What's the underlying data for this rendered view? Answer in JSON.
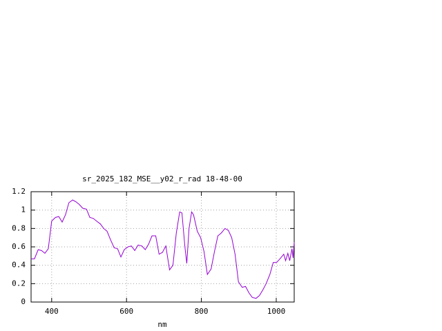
{
  "chart_data": {
    "type": "line",
    "title": "sr_2025_182_MSE__y02_r_rad 18-48-00",
    "x_label": "nm",
    "x": [
      345,
      354,
      364,
      373,
      382,
      391,
      400,
      410,
      419,
      428,
      437,
      446,
      456,
      465,
      474,
      483,
      493,
      502,
      511,
      520,
      530,
      539,
      548,
      557,
      567,
      576,
      585,
      594,
      604,
      613,
      622,
      631,
      641,
      650,
      659,
      668,
      678,
      687,
      696,
      705,
      715,
      724,
      733,
      742,
      748,
      756,
      761,
      767,
      774,
      779,
      789,
      798,
      807,
      816,
      826,
      835,
      844,
      853,
      863,
      872,
      881,
      890,
      899,
      909,
      918,
      927,
      936,
      946,
      955,
      964,
      973,
      983,
      992,
      1001,
      1010,
      1020,
      1025,
      1031,
      1036,
      1042,
      1045,
      1048
    ],
    "series": [
      {
        "name": null,
        "color": "#9400d3",
        "values": [
          0.47,
          0.47,
          0.57,
          0.56,
          0.53,
          0.58,
          0.88,
          0.92,
          0.93,
          0.87,
          0.95,
          1.08,
          1.11,
          1.09,
          1.06,
          1.02,
          1.01,
          0.92,
          0.91,
          0.88,
          0.85,
          0.8,
          0.77,
          0.68,
          0.59,
          0.58,
          0.49,
          0.57,
          0.6,
          0.61,
          0.56,
          0.62,
          0.61,
          0.57,
          0.63,
          0.72,
          0.72,
          0.52,
          0.54,
          0.61,
          0.35,
          0.4,
          0.75,
          0.98,
          0.97,
          0.6,
          0.42,
          0.8,
          0.98,
          0.95,
          0.77,
          0.7,
          0.55,
          0.3,
          0.36,
          0.55,
          0.72,
          0.75,
          0.8,
          0.78,
          0.7,
          0.52,
          0.22,
          0.16,
          0.17,
          0.1,
          0.05,
          0.04,
          0.07,
          0.13,
          0.2,
          0.3,
          0.43,
          0.43,
          0.47,
          0.52,
          0.45,
          0.53,
          0.45,
          0.58,
          0.48,
          0.65
        ]
      }
    ],
    "xlim": [
      345,
      1048
    ],
    "xticks": [
      400,
      600,
      800,
      1000
    ],
    "ylim": [
      0,
      1.2
    ],
    "yticks": [
      0,
      0.2,
      0.4,
      0.6,
      0.8,
      1,
      1.2
    ],
    "grid": true
  }
}
